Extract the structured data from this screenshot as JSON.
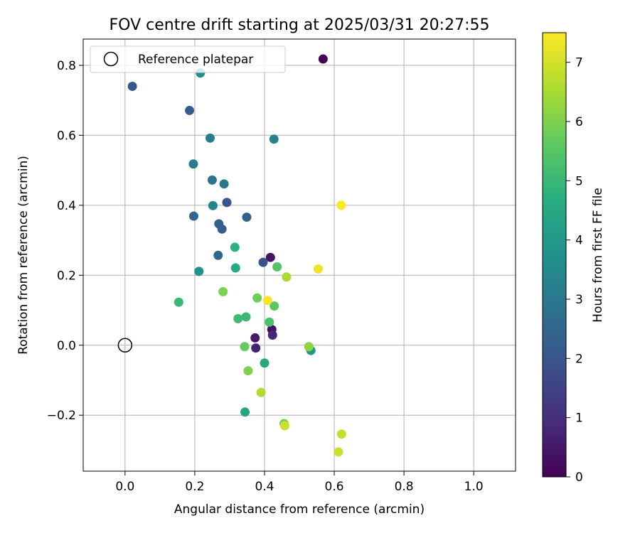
{
  "chart_data": {
    "type": "scatter",
    "title": "FOV centre drift starting at 2025/03/31 20:27:55",
    "xlabel": "Angular distance from reference (arcmin)",
    "ylabel": "Rotation from reference (arcmin)",
    "xlim": [
      -0.12,
      1.12
    ],
    "ylim": [
      -0.36,
      0.875
    ],
    "xticks": [
      0.0,
      0.2,
      0.4,
      0.6,
      0.8,
      1.0
    ],
    "xtick_labels": [
      "0.0",
      "0.2",
      "0.4",
      "0.6",
      "0.8",
      "1.0"
    ],
    "yticks": [
      -0.2,
      0.0,
      0.2,
      0.4,
      0.6,
      0.8
    ],
    "ytick_labels": [
      "−0.2",
      "0.0",
      "0.2",
      "0.4",
      "0.6",
      "0.8"
    ],
    "grid": true,
    "legend": {
      "position": "top-left",
      "label": "Reference platepar"
    },
    "reference_point": {
      "x": 0.0,
      "y": 0.0
    },
    "colorbar": {
      "label": "Hours from first FF file",
      "colormap": "viridis",
      "range": [
        0,
        7.5
      ],
      "ticks": [
        0,
        1,
        2,
        3,
        4,
        5,
        6,
        7
      ],
      "tick_labels": [
        "0",
        "1",
        "2",
        "3",
        "4",
        "5",
        "6",
        "7"
      ]
    },
    "points": [
      {
        "x": 0.568,
        "y": 0.818,
        "hours": 0.05
      },
      {
        "x": 0.417,
        "y": 0.251,
        "hours": 0.4
      },
      {
        "x": 0.373,
        "y": 0.021,
        "hours": 0.5
      },
      {
        "x": 0.375,
        "y": -0.008,
        "hours": 0.7
      },
      {
        "x": 0.421,
        "y": 0.045,
        "hours": 0.3
      },
      {
        "x": 0.423,
        "y": 0.029,
        "hours": 0.8
      },
      {
        "x": 0.396,
        "y": 0.237,
        "hours": 1.9
      },
      {
        "x": 0.021,
        "y": 0.74,
        "hours": 2.1
      },
      {
        "x": 0.185,
        "y": 0.671,
        "hours": 2.2
      },
      {
        "x": 0.292,
        "y": 0.408,
        "hours": 2.0
      },
      {
        "x": 0.349,
        "y": 0.366,
        "hours": 2.3
      },
      {
        "x": 0.197,
        "y": 0.369,
        "hours": 2.4
      },
      {
        "x": 0.269,
        "y": 0.347,
        "hours": 2.3
      },
      {
        "x": 0.278,
        "y": 0.332,
        "hours": 2.2
      },
      {
        "x": 0.267,
        "y": 0.257,
        "hours": 2.5
      },
      {
        "x": 0.25,
        "y": 0.472,
        "hours": 2.9
      },
      {
        "x": 0.284,
        "y": 0.461,
        "hours": 3.0
      },
      {
        "x": 0.196,
        "y": 0.518,
        "hours": 3.1
      },
      {
        "x": 0.244,
        "y": 0.592,
        "hours": 3.2
      },
      {
        "x": 0.427,
        "y": 0.589,
        "hours": 3.3
      },
      {
        "x": 0.252,
        "y": 0.399,
        "hours": 3.4
      },
      {
        "x": 0.216,
        "y": 0.778,
        "hours": 3.6
      },
      {
        "x": 0.212,
        "y": 0.211,
        "hours": 3.8
      },
      {
        "x": 0.533,
        "y": -0.015,
        "hours": 4.0
      },
      {
        "x": 0.344,
        "y": -0.191,
        "hours": 4.4
      },
      {
        "x": 0.4,
        "y": -0.051,
        "hours": 4.5
      },
      {
        "x": 0.317,
        "y": 0.221,
        "hours": 4.6
      },
      {
        "x": 0.315,
        "y": 0.28,
        "hours": 4.8
      },
      {
        "x": 0.154,
        "y": 0.123,
        "hours": 5.0
      },
      {
        "x": 0.347,
        "y": 0.081,
        "hours": 5.0
      },
      {
        "x": 0.324,
        "y": 0.076,
        "hours": 5.1
      },
      {
        "x": 0.414,
        "y": 0.066,
        "hours": 5.3
      },
      {
        "x": 0.436,
        "y": 0.224,
        "hours": 5.4
      },
      {
        "x": 0.428,
        "y": 0.112,
        "hours": 5.6
      },
      {
        "x": 0.379,
        "y": 0.135,
        "hours": 5.8
      },
      {
        "x": 0.343,
        "y": -0.004,
        "hours": 5.7
      },
      {
        "x": 0.353,
        "y": -0.073,
        "hours": 6.0
      },
      {
        "x": 0.281,
        "y": 0.153,
        "hours": 6.0
      },
      {
        "x": 0.456,
        "y": -0.224,
        "hours": 5.9
      },
      {
        "x": 0.527,
        "y": -0.004,
        "hours": 6.2
      },
      {
        "x": 0.463,
        "y": 0.195,
        "hours": 6.5
      },
      {
        "x": 0.39,
        "y": -0.135,
        "hours": 6.6
      },
      {
        "x": 0.458,
        "y": -0.23,
        "hours": 6.9
      },
      {
        "x": 0.621,
        "y": -0.254,
        "hours": 6.8
      },
      {
        "x": 0.612,
        "y": -0.305,
        "hours": 6.9
      },
      {
        "x": 0.409,
        "y": 0.128,
        "hours": 7.4
      },
      {
        "x": 0.554,
        "y": 0.218,
        "hours": 7.3
      },
      {
        "x": 0.62,
        "y": 0.4,
        "hours": 7.5
      }
    ]
  }
}
